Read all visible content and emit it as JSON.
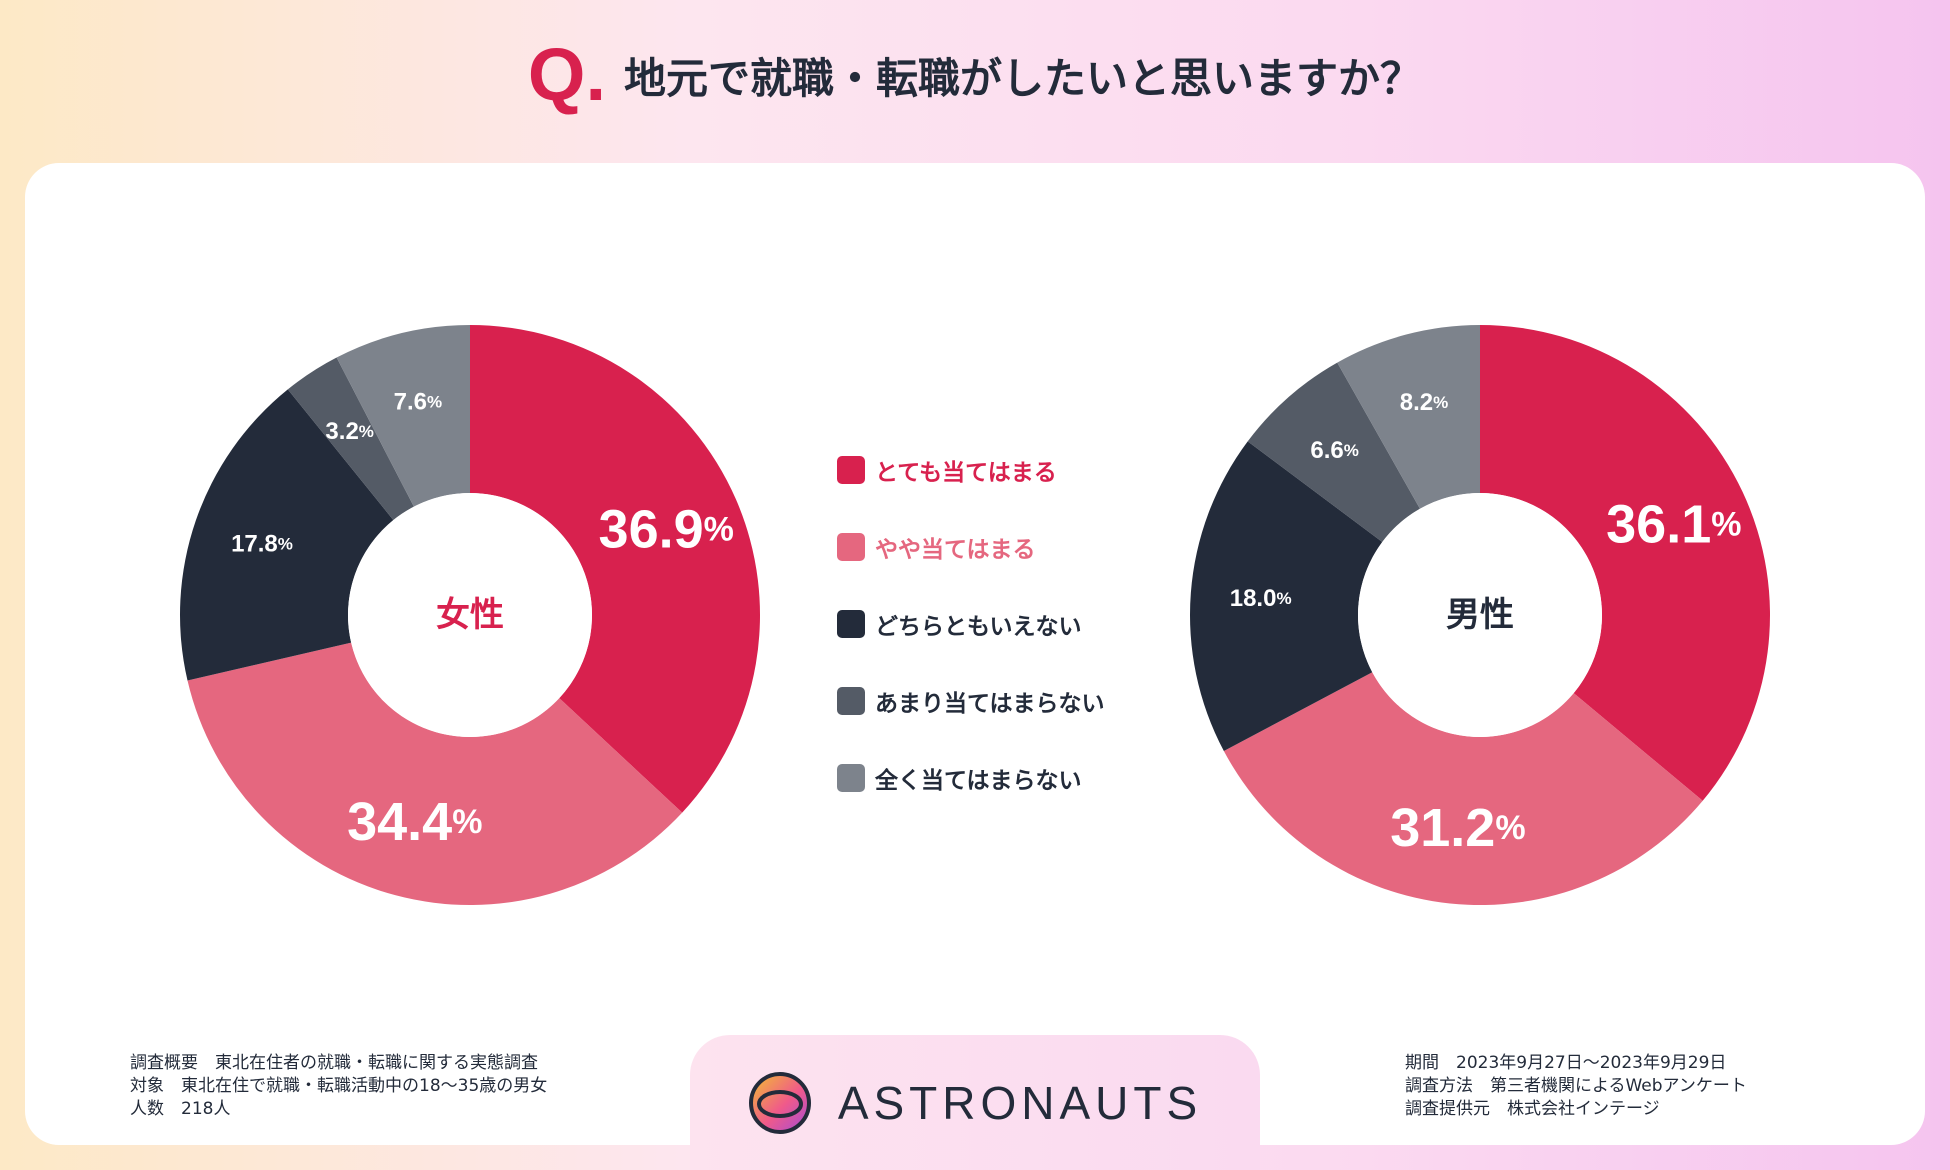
{
  "title": {
    "q": "Q.",
    "text": "地元で就職・転職がしたいと思いますか？"
  },
  "legend": [
    {
      "label": "とても当てはまる",
      "color": "#d8214e",
      "text_color": "#d8214e"
    },
    {
      "label": "やや当てはまる",
      "color": "#e5677f",
      "text_color": "#e5677f"
    },
    {
      "label": "どちらともいえない",
      "color": "#232b3a",
      "text_color": "#232b3a"
    },
    {
      "label": "あまり当てはまらない",
      "color": "#545b66",
      "text_color": "#232b3a"
    },
    {
      "label": "全く当てはまらない",
      "color": "#7d838c",
      "text_color": "#232b3a"
    }
  ],
  "chart_data": [
    {
      "type": "pie",
      "title": "女性",
      "title_color": "#d8214e",
      "categories": [
        "とても当てはまる",
        "やや当てはまる",
        "どちらともいえない",
        "あまり当てはまらない",
        "全く当てはまらない"
      ],
      "values": [
        36.9,
        34.4,
        17.8,
        3.2,
        7.6
      ],
      "labels": [
        "36.9",
        "34.4",
        "17.8",
        "3.2",
        "7.6"
      ],
      "unit": "%",
      "colors": [
        "#d8214e",
        "#e5677f",
        "#232b3a",
        "#545b66",
        "#7d838c"
      ]
    },
    {
      "type": "pie",
      "title": "男性",
      "title_color": "#232b3a",
      "categories": [
        "とても当てはまる",
        "やや当てはまる",
        "どちらともいえない",
        "あまり当てはまらない",
        "全く当てはまらない"
      ],
      "values": [
        36.1,
        31.2,
        18.0,
        6.6,
        8.2
      ],
      "labels": [
        "36.1",
        "31.2",
        "18.0",
        "6.6",
        "8.2"
      ],
      "unit": "%",
      "colors": [
        "#d8214e",
        "#e5677f",
        "#232b3a",
        "#545b66",
        "#7d838c"
      ]
    }
  ],
  "footer": {
    "left": [
      "調査概要　東北在住者の就職・転職に関する実態調査",
      "対象　東北在住で就職・転職活動中の18〜35歳の男女",
      "人数　218人"
    ],
    "right": [
      "期間　2023年9月27日〜2023年9月29日",
      "調査方法　第三者機関によるWebアンケート",
      "調査提供元　株式会社インテージ"
    ],
    "logo_text": "ASTRONAUTS"
  }
}
